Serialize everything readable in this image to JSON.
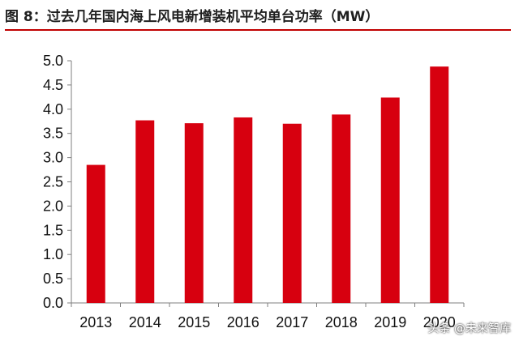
{
  "caption": "图 8：过去几年国内海上风电新增装机平均单台功率（MW）",
  "watermark": "头条 @未来智库",
  "colors": {
    "bar": "#d7000f",
    "accent": "#c00000",
    "axis": "#7f7f7f"
  },
  "chart_data": {
    "type": "bar",
    "title": "",
    "xlabel": "",
    "ylabel": "",
    "categories": [
      "2013",
      "2014",
      "2015",
      "2016",
      "2017",
      "2018",
      "2019",
      "2020"
    ],
    "values": [
      2.85,
      3.77,
      3.71,
      3.83,
      3.7,
      3.89,
      4.24,
      4.88
    ],
    "ylim": [
      0,
      5
    ],
    "yticks": [
      "0.0",
      "0.5",
      "1.0",
      "1.5",
      "2.0",
      "2.5",
      "3.0",
      "3.5",
      "4.0",
      "4.5",
      "5.0"
    ],
    "grid": false,
    "legend": "none"
  }
}
